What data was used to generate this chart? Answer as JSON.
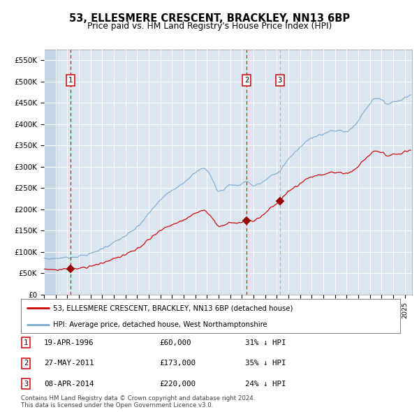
{
  "title": "53, ELLESMERE CRESCENT, BRACKLEY, NN13 6BP",
  "subtitle": "Price paid vs. HM Land Registry's House Price Index (HPI)",
  "background_color": "#dce6f0",
  "plot_bg_color": "#dce6f0",
  "red_line_color": "#cc0000",
  "blue_line_color": "#7aabcf",
  "red_dot_color": "#990000",
  "vline_red_color": "#cc0000",
  "vline_gray_color": "#aaaaaa",
  "grid_color": "#ffffff",
  "ylim": [
    0,
    575000
  ],
  "yticks": [
    0,
    50000,
    100000,
    150000,
    200000,
    250000,
    300000,
    350000,
    400000,
    450000,
    500000,
    550000
  ],
  "xmin": 1994.0,
  "xmax": 2025.6,
  "purchases": [
    {
      "date_num": 1996.3,
      "price": 60000,
      "label": "1",
      "vline_style": "red"
    },
    {
      "date_num": 2011.41,
      "price": 173000,
      "label": "2",
      "vline_style": "red"
    },
    {
      "date_num": 2014.27,
      "price": 220000,
      "label": "3",
      "vline_style": "gray"
    }
  ],
  "legend_entries": [
    {
      "label": "53, ELLESMERE CRESCENT, BRACKLEY, NN13 6BP (detached house)",
      "color": "#cc0000"
    },
    {
      "label": "HPI: Average price, detached house, West Northamptonshire",
      "color": "#7aabcf"
    }
  ],
  "table_rows": [
    {
      "num": "1",
      "date": "19-APR-1996",
      "price": "£60,000",
      "pct": "31% ↓ HPI"
    },
    {
      "num": "2",
      "date": "27-MAY-2011",
      "price": "£173,000",
      "pct": "35% ↓ HPI"
    },
    {
      "num": "3",
      "date": "08-APR-2014",
      "price": "£220,000",
      "pct": "24% ↓ HPI"
    }
  ],
  "footer": "Contains HM Land Registry data © Crown copyright and database right 2024.\nThis data is licensed under the Open Government Licence v3.0."
}
